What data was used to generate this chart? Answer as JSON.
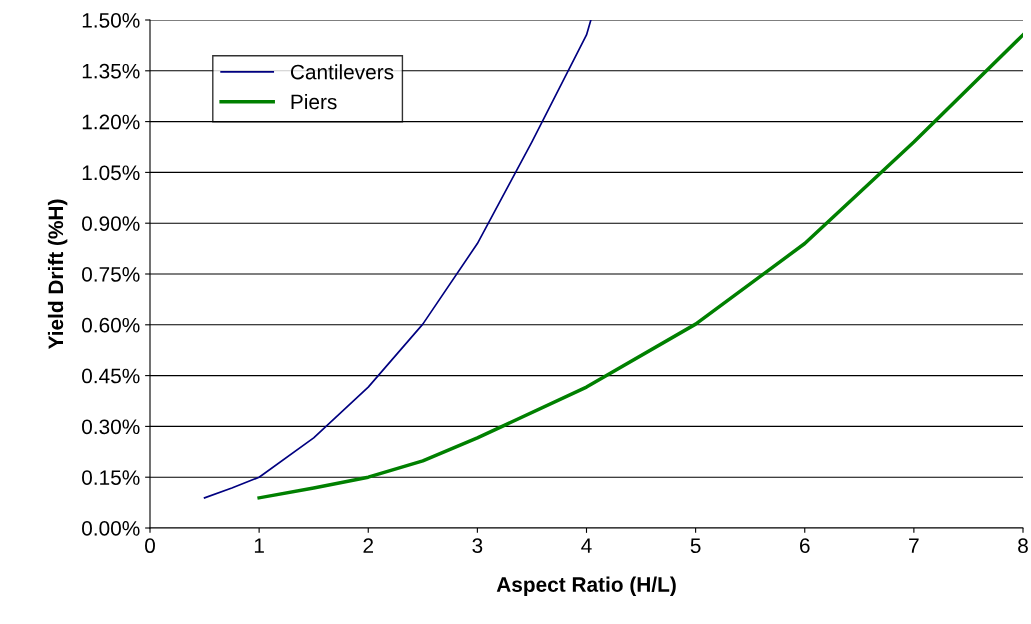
{
  "chart_data": {
    "type": "line",
    "xlabel": "Aspect Ratio (H/L)",
    "ylabel": "Yield Drift (%H)",
    "series": [
      {
        "name": "Cantilevers",
        "color": "#000080",
        "x": [
          0.5,
          0.75,
          1,
          1.5,
          2,
          2.5,
          3,
          3.5,
          4,
          4.04
        ],
        "values": [
          0.089,
          0.118,
          0.15,
          0.266,
          0.416,
          0.602,
          0.84,
          1.14,
          1.456,
          1.5
        ]
      },
      {
        "name": "Piers",
        "color": "#008000",
        "x": [
          1,
          1.5,
          2,
          2.5,
          3,
          4,
          5,
          6,
          7,
          8
        ],
        "values": [
          0.089,
          0.118,
          0.15,
          0.198,
          0.266,
          0.416,
          0.602,
          0.84,
          1.14,
          1.456
        ]
      }
    ],
    "xlim": [
      0,
      8
    ],
    "xticks": [
      0,
      1,
      2,
      3,
      4,
      5,
      6,
      7,
      8
    ],
    "ylim": [
      0,
      1.5
    ],
    "yticks": [
      {
        "value": 0,
        "label": "0.00%"
      },
      {
        "value": 0.15,
        "label": "0.15%"
      },
      {
        "value": 0.3,
        "label": "0.30%"
      },
      {
        "value": 0.45,
        "label": "0.45%"
      },
      {
        "value": 0.6,
        "label": "0.60%"
      },
      {
        "value": 0.75,
        "label": "0.75%"
      },
      {
        "value": 0.9,
        "label": "0.90%"
      },
      {
        "value": 1.05,
        "label": "1.05%"
      },
      {
        "value": 1.2,
        "label": "1.20%"
      },
      {
        "value": 1.35,
        "label": "1.35%"
      },
      {
        "value": 1.5,
        "label": "1.50%"
      }
    ],
    "grid": "y",
    "legend": "top left",
    "marker": "none",
    "line_style": "solid"
  }
}
